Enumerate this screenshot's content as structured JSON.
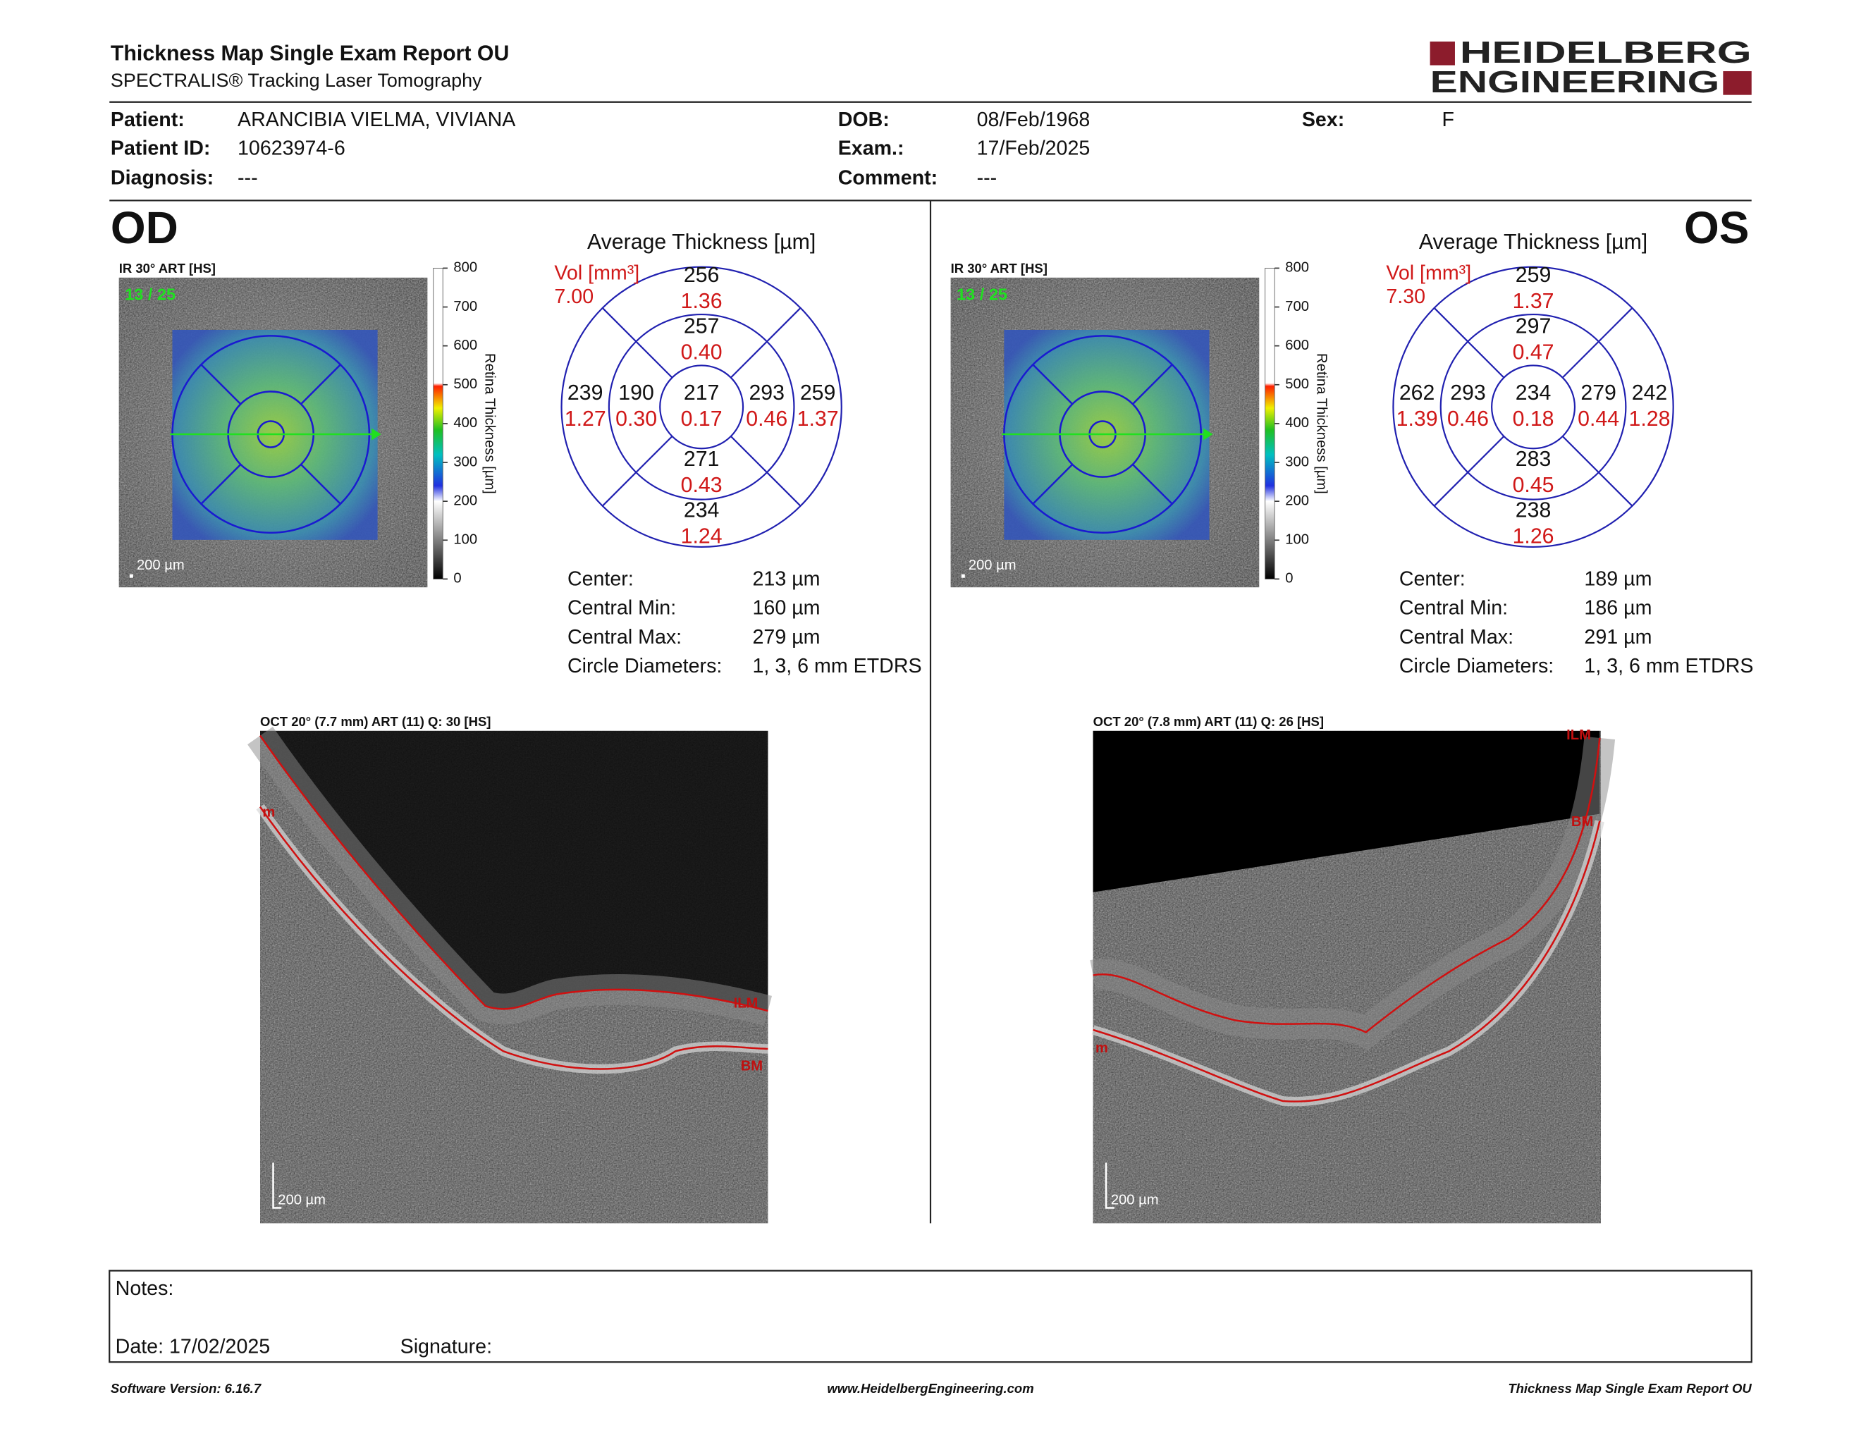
{
  "header": {
    "title": "Thickness Map Single Exam Report OU",
    "subtitle": "SPECTRALIS® Tracking Laser Tomography",
    "logo": [
      "HEIDELBERG",
      "ENGINEERING"
    ]
  },
  "patient": [
    {
      "label": "Patient:",
      "value": "ARANCIBIA VIELMA, VIVIANA"
    },
    {
      "label": "Patient ID:",
      "value": "10623974-6"
    },
    {
      "label": "Diagnosis:",
      "value": "---"
    },
    {
      "label": "DOB:",
      "value": "08/Feb/1968"
    },
    {
      "label": "Exam.:",
      "value": "17/Feb/2025"
    },
    {
      "label": "Comment:",
      "value": "---"
    },
    {
      "label": "Sex:",
      "value": "F"
    }
  ],
  "colorbar": {
    "title": "Retina Thickness [µm]",
    "ticks": [
      "800",
      "700",
      "600",
      "500",
      "400",
      "300",
      "200",
      "100",
      "0"
    ]
  },
  "eyes": [
    {
      "eye": "OD",
      "ir_label": "IR 30° ART [HS]",
      "frame": "13 / 25",
      "scale": "200 µm",
      "average_title": "Average Thickness [µm]",
      "volume_label": "Vol [mm³]",
      "total_volume": "7.00",
      "sectors": [
        {
          "thickness": "256",
          "volume": "1.36"
        },
        {
          "thickness": "257",
          "volume": "0.40"
        },
        {
          "thickness": "239",
          "volume": "1.27"
        },
        {
          "thickness": "190",
          "volume": "0.30"
        },
        {
          "thickness": "217",
          "volume": "0.17"
        },
        {
          "thickness": "293",
          "volume": "0.46"
        },
        {
          "thickness": "259",
          "volume": "1.37"
        },
        {
          "thickness": "271",
          "volume": "0.43"
        },
        {
          "thickness": "234",
          "volume": "1.24"
        }
      ],
      "stats": [
        {
          "label": "Center:",
          "value": "213 µm"
        },
        {
          "label": "Central Min:",
          "value": "160 µm"
        },
        {
          "label": "Central Max:",
          "value": "279 µm"
        },
        {
          "label": "Circle Diameters:",
          "value": "1, 3, 6 mm ETDRS"
        }
      ],
      "oct_label": "OCT 20° (7.7 mm) ART (11) Q: 30 [HS]",
      "oct_scale": "200 µm",
      "layers": [
        "m",
        "ILM",
        "BM"
      ]
    },
    {
      "eye": "OS",
      "ir_label": "IR 30° ART [HS]",
      "frame": "13 / 25",
      "scale": "200 µm",
      "average_title": "Average Thickness [µm]",
      "volume_label": "Vol [mm³]",
      "total_volume": "7.30",
      "sectors": [
        {
          "thickness": "259",
          "volume": "1.37"
        },
        {
          "thickness": "297",
          "volume": "0.47"
        },
        {
          "thickness": "262",
          "volume": "1.39"
        },
        {
          "thickness": "293",
          "volume": "0.46"
        },
        {
          "thickness": "234",
          "volume": "0.18"
        },
        {
          "thickness": "279",
          "volume": "0.44"
        },
        {
          "thickness": "242",
          "volume": "1.28"
        },
        {
          "thickness": "283",
          "volume": "0.45"
        },
        {
          "thickness": "238",
          "volume": "1.26"
        }
      ],
      "stats": [
        {
          "label": "Center:",
          "value": "189 µm"
        },
        {
          "label": "Central Min:",
          "value": "186 µm"
        },
        {
          "label": "Central Max:",
          "value": "291 µm"
        },
        {
          "label": "Circle Diameters:",
          "value": "1, 3, 6 mm ETDRS"
        }
      ],
      "oct_label": "OCT 20° (7.8 mm) ART (11) Q: 26 [HS]",
      "oct_scale": "200 µm",
      "layers": [
        "ILM",
        "BM",
        "m"
      ]
    }
  ],
  "notes": {
    "label": "Notes:",
    "date": "Date: 17/02/2025",
    "signature": "Signature:"
  },
  "footer": {
    "left": "Software Version: 6.16.7",
    "center": "www.HeidelbergEngineering.com",
    "right": "Thickness Map Single Exam Report OU"
  }
}
